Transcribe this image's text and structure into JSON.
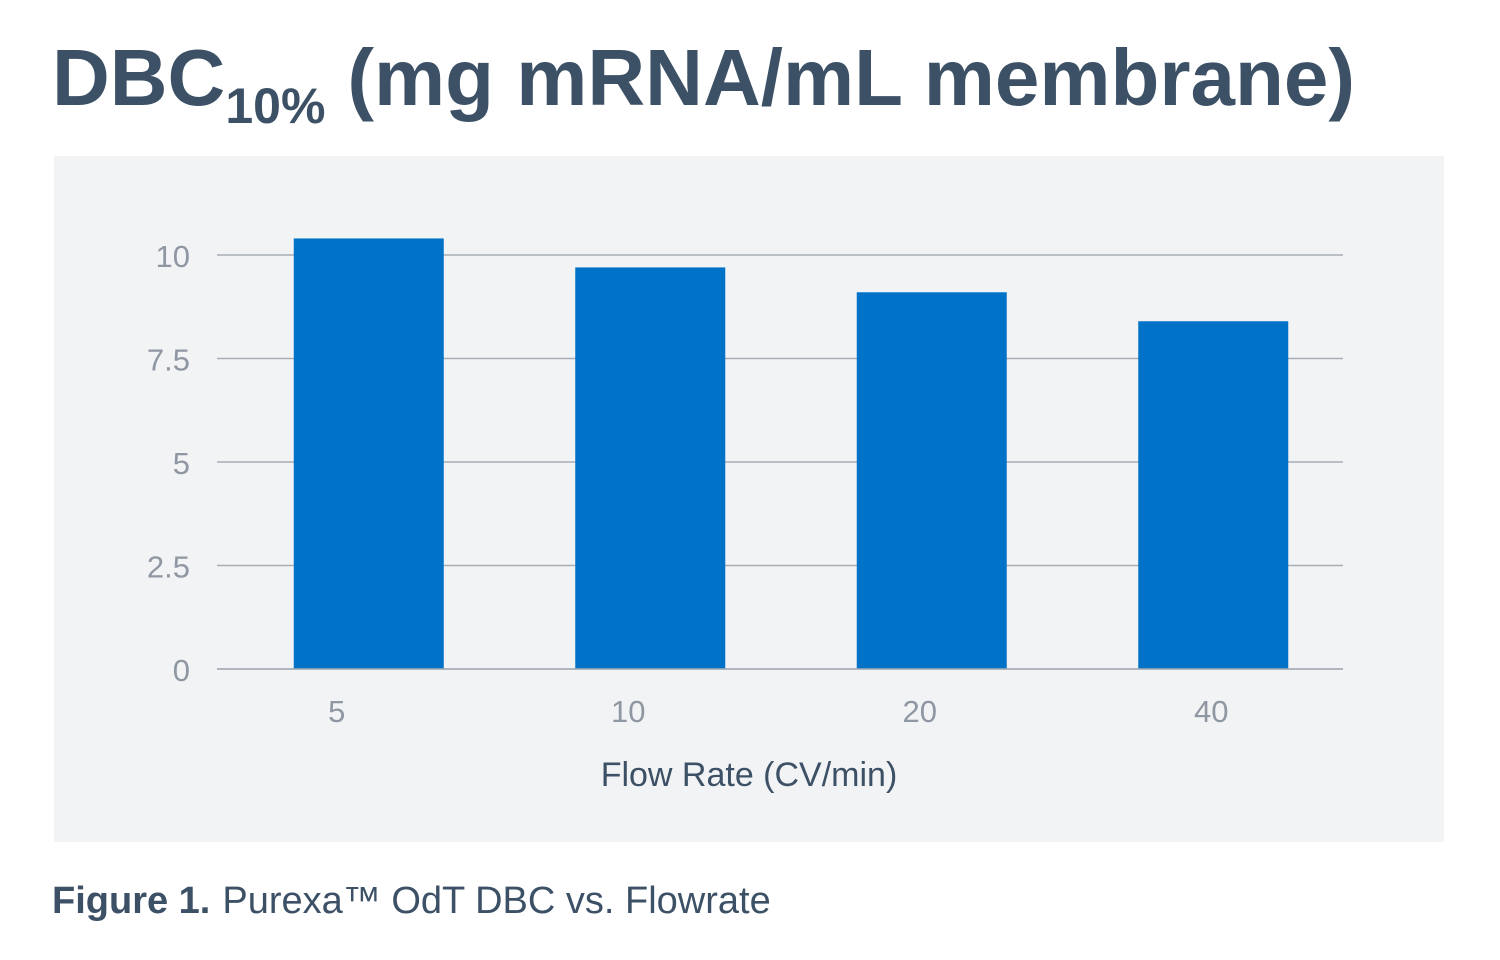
{
  "title": {
    "main": "DBC",
    "subscript": "10%",
    "rest": "(mg mRNA/mL membrane)"
  },
  "caption": {
    "label": "Figure 1.",
    "text": "Purexa™ OdT DBC  vs. Flowrate"
  },
  "colors": {
    "bar": "#0073c8",
    "grid": "#a7adb5",
    "tick_text": "#8e97a2",
    "axis_label_text": "#3d5166",
    "panel_background": "#f2f3f5",
    "title_text": "#3d5166"
  },
  "chart_data": {
    "type": "bar",
    "title": "DBC10% (mg mRNA/mL membrane)",
    "xlabel": "Flow Rate (CV/min)",
    "ylabel": "",
    "categories": [
      "5",
      "10",
      "20",
      "40"
    ],
    "values": [
      10.4,
      9.7,
      9.1,
      8.4
    ],
    "ylim": [
      0,
      10
    ],
    "yticks": [
      0,
      2.5,
      5,
      7.5,
      10
    ],
    "ytick_labels": [
      "0",
      "2.5",
      "5",
      "7.5",
      "10"
    ],
    "grid": true,
    "legend": "none"
  }
}
